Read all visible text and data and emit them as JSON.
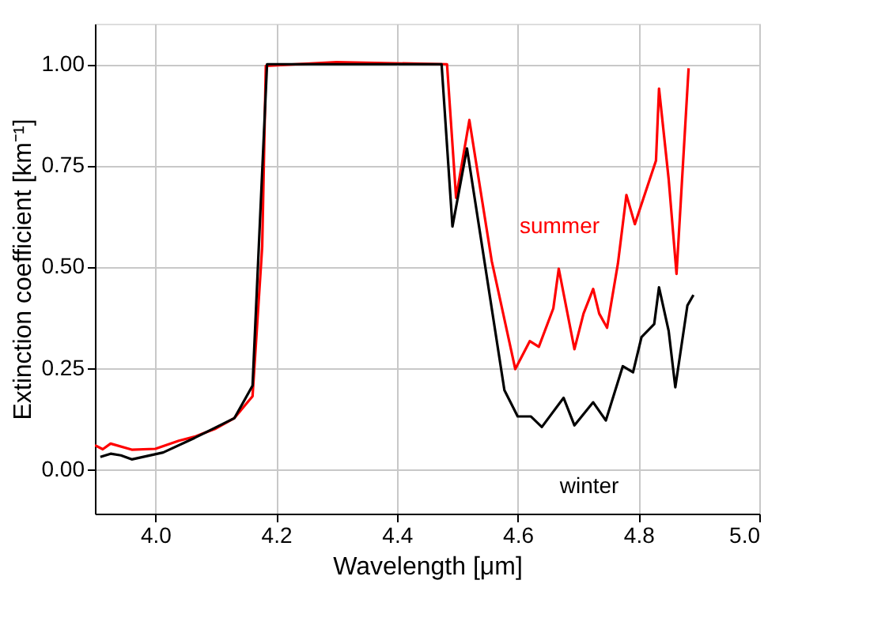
{
  "chart_data": {
    "type": "line",
    "xlabel": "Wavelength [μm]",
    "ylabel": "Extinction coefficient [km⁻¹]",
    "xlim": [
      3.9,
      5.0
    ],
    "xticks": [
      {
        "value": 4.0,
        "label": "4.0"
      },
      4.2,
      4.4,
      4.6,
      4.8,
      {
        "value": 5.0,
        "label": "5.0"
      }
    ],
    "ylim": [
      -0.11,
      1.1
    ],
    "yticks": [
      {
        "value": 0.0,
        "label": "0.00"
      },
      0.25,
      {
        "value": 0.5,
        "label": "0.50"
      },
      0.75,
      {
        "value": 1.0,
        "label": "1.00"
      }
    ],
    "grid": true,
    "marker": "none",
    "line_style": "solid",
    "series": [
      {
        "name": "summer",
        "color": "#ff0000",
        "x": [
          3.9,
          3.913,
          3.926,
          3.961,
          4.0,
          4.039,
          4.065,
          4.1,
          4.131,
          4.161,
          4.177,
          4.183,
          4.3,
          4.483,
          4.498,
          4.52,
          4.557,
          4.596,
          4.62,
          4.635,
          4.659,
          4.668,
          4.694,
          4.709,
          4.725,
          4.735,
          4.748,
          4.766,
          4.78,
          4.794,
          4.829,
          4.834,
          4.85,
          4.863,
          4.883
        ],
        "values": [
          0.059,
          0.049,
          0.063,
          0.048,
          0.05,
          0.07,
          0.08,
          0.1,
          0.126,
          0.18,
          0.55,
          0.996,
          1.005,
          1.0,
          0.67,
          0.862,
          0.514,
          0.247,
          0.316,
          0.302,
          0.397,
          0.495,
          0.296,
          0.384,
          0.445,
          0.384,
          0.349,
          0.508,
          0.677,
          0.605,
          0.762,
          0.94,
          0.716,
          0.482,
          0.99
        ]
      },
      {
        "name": "winter",
        "color": "#000000",
        "x": [
          3.909,
          3.926,
          3.943,
          3.961,
          4.013,
          4.065,
          4.131,
          4.161,
          4.185,
          4.474,
          4.492,
          4.516,
          4.578,
          4.6,
          4.622,
          4.64,
          4.676,
          4.694,
          4.725,
          4.746,
          4.774,
          4.791,
          4.805,
          4.826,
          4.834,
          4.85,
          4.861,
          4.881,
          4.891
        ],
        "values": [
          0.03,
          0.038,
          0.034,
          0.024,
          0.041,
          0.077,
          0.126,
          0.206,
          1.0,
          1.0,
          0.599,
          0.792,
          0.195,
          0.13,
          0.13,
          0.104,
          0.176,
          0.108,
          0.165,
          0.12,
          0.254,
          0.239,
          0.326,
          0.358,
          0.449,
          0.341,
          0.202,
          0.404,
          0.43
        ]
      }
    ]
  }
}
